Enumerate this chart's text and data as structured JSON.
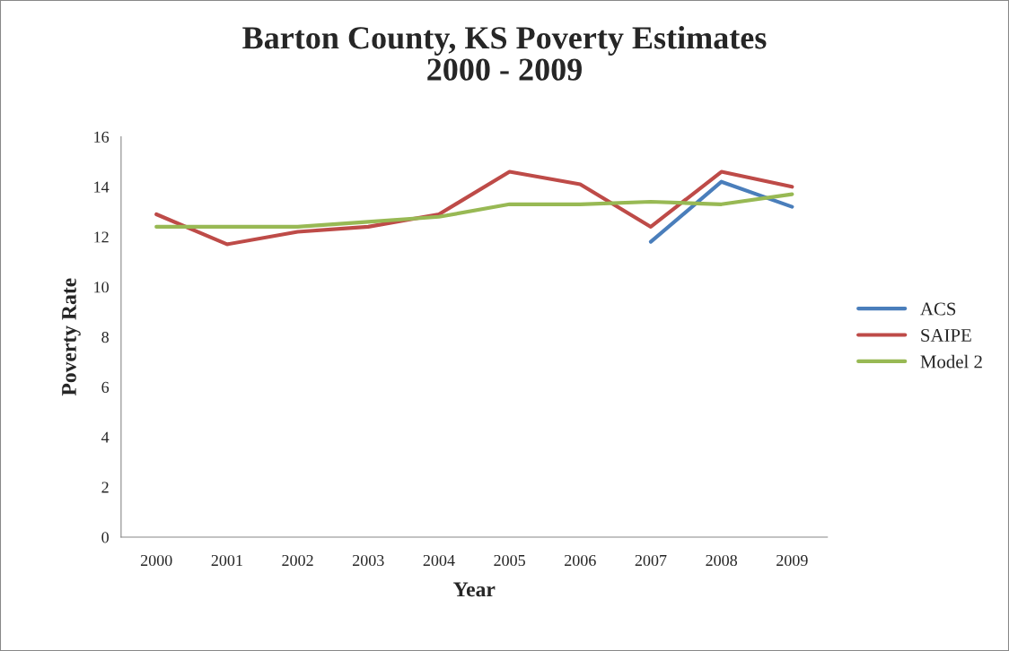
{
  "chart_data": {
    "type": "line",
    "title": "Barton County, KS Poverty Estimates\n2000 - 2009",
    "xlabel": "Year",
    "ylabel": "Poverty Rate",
    "categories": [
      "2000",
      "2001",
      "2002",
      "2003",
      "2004",
      "2005",
      "2006",
      "2007",
      "2008",
      "2009"
    ],
    "series": [
      {
        "name": "ACS",
        "color": "#4a7ebb",
        "values": [
          null,
          null,
          null,
          null,
          null,
          null,
          null,
          11.8,
          14.2,
          13.2
        ]
      },
      {
        "name": "SAIPE",
        "color": "#be4b48",
        "values": [
          12.9,
          11.7,
          12.2,
          12.4,
          12.9,
          14.6,
          14.1,
          12.4,
          14.6,
          14.0
        ]
      },
      {
        "name": "Model 2",
        "color": "#98b954",
        "values": [
          12.4,
          12.4,
          12.4,
          12.6,
          12.8,
          13.3,
          13.3,
          13.4,
          13.3,
          13.7
        ]
      }
    ],
    "ylim": [
      0,
      16
    ],
    "yticks": [
      0,
      2,
      4,
      6,
      8,
      10,
      12,
      14,
      16
    ],
    "grid": false,
    "legend": "right",
    "marker": "none",
    "line_style": "solid"
  }
}
